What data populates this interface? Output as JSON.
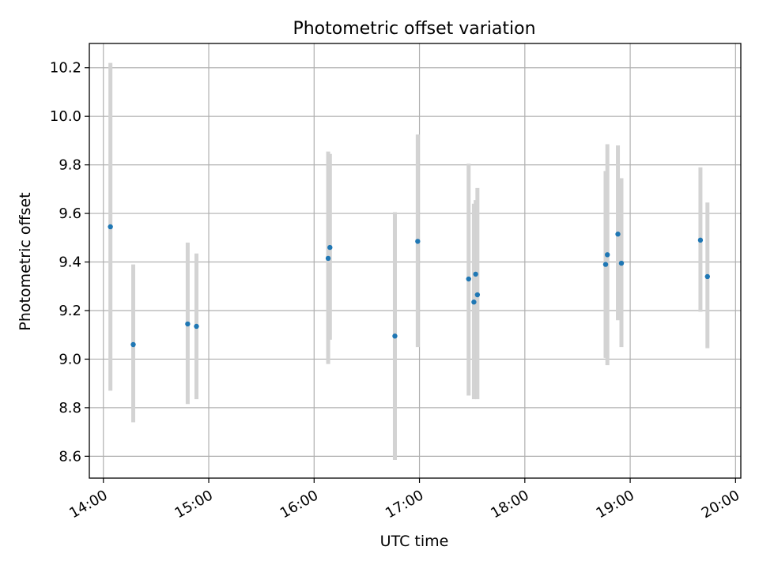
{
  "chart_data": {
    "type": "scatter",
    "title": "Photometric offset variation",
    "xlabel": "UTC time",
    "ylabel": "Photometric offset",
    "x_unit": "UTC hours of day",
    "xlim": [
      "13:52",
      "20:03"
    ],
    "ylim": [
      8.51,
      10.3
    ],
    "x_ticks": [
      "14:00",
      "15:00",
      "16:00",
      "17:00",
      "18:00",
      "19:00",
      "20:00"
    ],
    "y_ticks": [
      "8.6",
      "8.8",
      "9.0",
      "9.2",
      "9.4",
      "9.6",
      "9.8",
      "10.0",
      "10.2"
    ],
    "grid": true,
    "point_color": "#1f77b4",
    "errorbar_color": "#d3d3d3",
    "points": [
      {
        "time": "14:04",
        "value": 9.545,
        "err_low": 8.87,
        "err_high": 10.22
      },
      {
        "time": "14:17",
        "value": 9.06,
        "err_low": 8.74,
        "err_high": 9.39
      },
      {
        "time": "14:48",
        "value": 9.145,
        "err_low": 8.815,
        "err_high": 9.48
      },
      {
        "time": "14:53",
        "value": 9.135,
        "err_low": 8.835,
        "err_high": 9.435
      },
      {
        "time": "16:08",
        "value": 9.415,
        "err_low": 8.98,
        "err_high": 9.855
      },
      {
        "time": "16:09",
        "value": 9.46,
        "err_low": 9.08,
        "err_high": 9.845
      },
      {
        "time": "16:46",
        "value": 9.095,
        "err_low": 8.585,
        "err_high": 9.605
      },
      {
        "time": "16:59",
        "value": 9.485,
        "err_low": 9.05,
        "err_high": 9.925
      },
      {
        "time": "17:28",
        "value": 9.33,
        "err_low": 8.85,
        "err_high": 9.805
      },
      {
        "time": "17:31",
        "value": 9.235,
        "err_low": 8.835,
        "err_high": 9.64
      },
      {
        "time": "17:32",
        "value": 9.35,
        "err_low": 9.045,
        "err_high": 9.655
      },
      {
        "time": "17:33",
        "value": 9.265,
        "err_low": 8.835,
        "err_high": 9.705
      },
      {
        "time": "18:46",
        "value": 9.39,
        "err_low": 9.005,
        "err_high": 9.775
      },
      {
        "time": "18:47",
        "value": 9.43,
        "err_low": 8.975,
        "err_high": 9.885
      },
      {
        "time": "18:53",
        "value": 9.515,
        "err_low": 9.16,
        "err_high": 9.88
      },
      {
        "time": "18:55",
        "value": 9.395,
        "err_low": 9.05,
        "err_high": 9.745
      },
      {
        "time": "19:40",
        "value": 9.49,
        "err_low": 9.195,
        "err_high": 9.79
      },
      {
        "time": "19:44",
        "value": 9.34,
        "err_low": 9.045,
        "err_high": 9.645
      }
    ]
  }
}
